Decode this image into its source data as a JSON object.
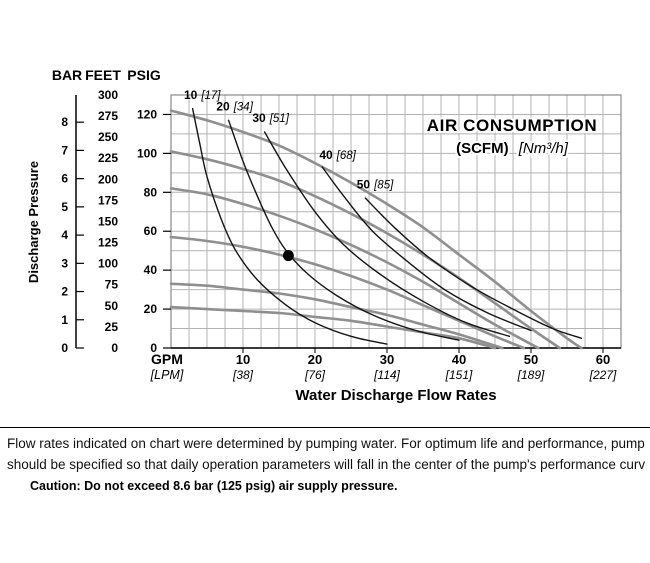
{
  "page": {
    "footer_line1": "Flow rates indicated on chart were determined by pumping water. For optimum life and performance, pump",
    "footer_line2": "should be specified so that daily operation parameters will fall in the center of the pump's performance curv",
    "caution": "Caution: Do not exceed 8.6 bar (125 psig) air supply pressure."
  },
  "chart_data": {
    "type": "line",
    "title": "AIR CONSUMPTION",
    "subtitle_bold": "(SCFM)",
    "subtitle_italic": "[Nm³/h]",
    "xlabel": "Water Discharge Flow Rates",
    "ylabel": "Discharge Pressure",
    "grid": "on",
    "x_axis": {
      "primary_unit": "GPM",
      "secondary_unit": "[LPM]",
      "ticks_gpm": [
        10,
        20,
        30,
        40,
        50,
        60
      ],
      "ticks_lpm": [
        "[38]",
        "[76]",
        "[114]",
        "[151]",
        "[189]",
        "[227]"
      ],
      "range_gpm": [
        0,
        62.5
      ],
      "minor_grid_step_gpm": 2.5
    },
    "y_axis": {
      "units": [
        "BAR",
        "FEET",
        "PSIG"
      ],
      "bar_ticks": [
        8,
        7,
        6,
        5,
        4,
        3,
        2,
        1,
        0
      ],
      "feet_ticks": [
        300,
        275,
        250,
        225,
        200,
        175,
        150,
        125,
        100,
        75,
        50,
        25,
        0
      ],
      "psig_ticks": [
        120,
        100,
        80,
        60,
        40,
        20,
        0
      ],
      "range_psig": [
        0,
        130
      ],
      "grid_step_psig": 10
    },
    "performance_curves": [
      {
        "name": "120 psig curve",
        "points": [
          [
            0,
            122
          ],
          [
            5,
            117
          ],
          [
            10,
            111
          ],
          [
            15,
            104
          ],
          [
            20,
            95
          ],
          [
            25,
            85
          ],
          [
            30,
            74
          ],
          [
            35,
            62
          ],
          [
            40,
            48
          ],
          [
            45,
            34
          ],
          [
            50,
            19
          ],
          [
            55,
            5
          ],
          [
            57,
            0
          ]
        ]
      },
      {
        "name": "100 psig curve",
        "points": [
          [
            0,
            101
          ],
          [
            5,
            97
          ],
          [
            10,
            92
          ],
          [
            15,
            86
          ],
          [
            20,
            78
          ],
          [
            25,
            69
          ],
          [
            30,
            59
          ],
          [
            35,
            48
          ],
          [
            40,
            36
          ],
          [
            45,
            23
          ],
          [
            50,
            10
          ],
          [
            54,
            0
          ]
        ]
      },
      {
        "name": "80 psig curve",
        "points": [
          [
            0,
            82
          ],
          [
            5,
            79
          ],
          [
            10,
            74
          ],
          [
            15,
            68
          ],
          [
            20,
            61
          ],
          [
            25,
            53
          ],
          [
            30,
            44
          ],
          [
            35,
            34
          ],
          [
            40,
            23
          ],
          [
            45,
            12
          ],
          [
            51,
            0
          ]
        ]
      },
      {
        "name": "60 psig curve",
        "points": [
          [
            0,
            57
          ],
          [
            5,
            55
          ],
          [
            10,
            52
          ],
          [
            15,
            48
          ],
          [
            20,
            43
          ],
          [
            25,
            37
          ],
          [
            30,
            30
          ],
          [
            35,
            22
          ],
          [
            40,
            14
          ],
          [
            45,
            6
          ],
          [
            49,
            0
          ]
        ]
      },
      {
        "name": "40 psig curve",
        "points": [
          [
            0,
            33
          ],
          [
            5,
            32
          ],
          [
            10,
            30
          ],
          [
            15,
            28
          ],
          [
            20,
            25
          ],
          [
            25,
            21
          ],
          [
            30,
            17
          ],
          [
            35,
            12
          ],
          [
            40,
            7
          ],
          [
            46,
            0
          ]
        ]
      },
      {
        "name": "20 psig curve",
        "points": [
          [
            0,
            21
          ],
          [
            5,
            20
          ],
          [
            10,
            19
          ],
          [
            15,
            18
          ],
          [
            20,
            16
          ],
          [
            25,
            14
          ],
          [
            30,
            11
          ],
          [
            35,
            8
          ],
          [
            40,
            5
          ],
          [
            45,
            0
          ]
        ]
      }
    ],
    "air_curves": [
      {
        "scfm": "10",
        "nm3h": "[17]",
        "label_at": {
          "gpm": 1.8,
          "psig": 128
        },
        "points": [
          [
            3,
            123
          ],
          [
            4,
            105
          ],
          [
            5,
            88
          ],
          [
            7,
            66
          ],
          [
            9,
            50
          ],
          [
            12,
            35
          ],
          [
            16,
            22
          ],
          [
            20,
            13
          ],
          [
            25,
            6
          ],
          [
            30,
            2
          ]
        ]
      },
      {
        "scfm": "20",
        "nm3h": "[34]",
        "label_at": {
          "gpm": 6.3,
          "psig": 122
        },
        "points": [
          [
            8,
            117
          ],
          [
            10,
            96
          ],
          [
            12,
            78
          ],
          [
            14,
            62
          ],
          [
            16,
            50
          ],
          [
            19,
            38
          ],
          [
            23,
            27
          ],
          [
            28,
            17
          ],
          [
            34,
            9
          ],
          [
            40,
            4
          ]
        ]
      },
      {
        "scfm": "30",
        "nm3h": "[51]",
        "label_at": {
          "gpm": 11.3,
          "psig": 116
        },
        "points": [
          [
            13,
            111
          ],
          [
            16,
            92
          ],
          [
            20,
            70
          ],
          [
            24,
            53
          ],
          [
            29,
            38
          ],
          [
            35,
            24
          ],
          [
            41,
            13
          ],
          [
            47,
            6
          ]
        ]
      },
      {
        "scfm": "40",
        "nm3h": "[68]",
        "label_at": {
          "gpm": 20.6,
          "psig": 97
        },
        "points": [
          [
            21,
            93
          ],
          [
            24,
            78
          ],
          [
            28,
            60
          ],
          [
            33,
            44
          ],
          [
            38,
            30
          ],
          [
            44,
            18
          ],
          [
            50,
            9
          ]
        ]
      },
      {
        "scfm": "50",
        "nm3h": "[85]",
        "label_at": {
          "gpm": 25.8,
          "psig": 82
        },
        "points": [
          [
            27,
            77
          ],
          [
            31,
            62
          ],
          [
            36,
            46
          ],
          [
            42,
            31
          ],
          [
            48,
            19
          ],
          [
            53,
            10
          ],
          [
            57,
            5
          ]
        ]
      }
    ],
    "operating_point": {
      "gpm": 16.3,
      "psig": 47.5
    },
    "colors": {
      "grid": "#b3b3b3",
      "border": "#8a8a8a",
      "performance_curve": "#8f8f8f",
      "air_curve": "#141414",
      "axis": "#000000"
    }
  }
}
